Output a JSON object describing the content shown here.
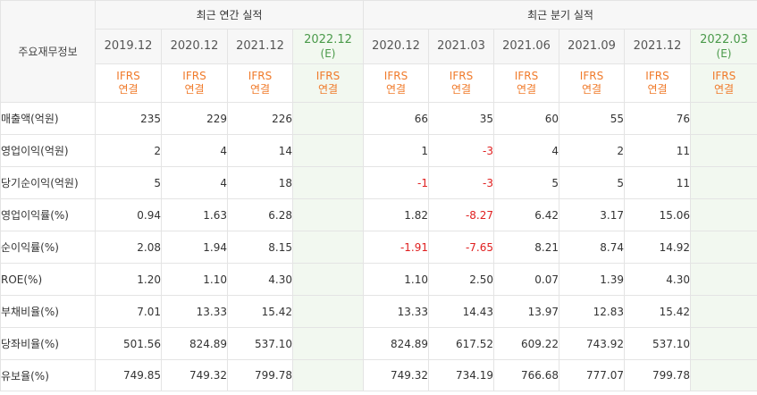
{
  "header": {
    "label": "주요재무정보",
    "annual_title": "최근 연간 실적",
    "quarter_title": "최근 분기 실적"
  },
  "periods": [
    {
      "label": "2019.12",
      "est": "",
      "ifrs": "IFRS",
      "basis": "연결",
      "estimate": false
    },
    {
      "label": "2020.12",
      "est": "",
      "ifrs": "IFRS",
      "basis": "연결",
      "estimate": false
    },
    {
      "label": "2021.12",
      "est": "",
      "ifrs": "IFRS",
      "basis": "연결",
      "estimate": false
    },
    {
      "label": "2022.12",
      "est": "(E)",
      "ifrs": "IFRS",
      "basis": "연결",
      "estimate": true
    },
    {
      "label": "2020.12",
      "est": "",
      "ifrs": "IFRS",
      "basis": "연결",
      "estimate": false
    },
    {
      "label": "2021.03",
      "est": "",
      "ifrs": "IFRS",
      "basis": "연결",
      "estimate": false
    },
    {
      "label": "2021.06",
      "est": "",
      "ifrs": "IFRS",
      "basis": "연결",
      "estimate": false
    },
    {
      "label": "2021.09",
      "est": "",
      "ifrs": "IFRS",
      "basis": "연결",
      "estimate": false
    },
    {
      "label": "2021.12",
      "est": "",
      "ifrs": "IFRS",
      "basis": "연결",
      "estimate": false
    },
    {
      "label": "2022.03",
      "est": "(E)",
      "ifrs": "IFRS",
      "basis": "연결",
      "estimate": true
    }
  ],
  "rows": [
    {
      "label": "매출액(억원)",
      "values": [
        "235",
        "229",
        "226",
        "",
        "66",
        "35",
        "60",
        "55",
        "76",
        ""
      ],
      "group_start": true
    },
    {
      "label": "영업이익(억원)",
      "values": [
        "2",
        "4",
        "14",
        "",
        "1",
        "-3",
        "4",
        "2",
        "11",
        ""
      ],
      "group_start": false
    },
    {
      "label": "당기순이익(억원)",
      "values": [
        "5",
        "4",
        "18",
        "",
        "-1",
        "-3",
        "5",
        "5",
        "11",
        ""
      ],
      "group_start": false
    },
    {
      "label": "영업이익률(%)",
      "values": [
        "0.94",
        "1.63",
        "6.28",
        "",
        "1.82",
        "-8.27",
        "6.42",
        "3.17",
        "15.06",
        ""
      ],
      "group_start": true
    },
    {
      "label": "순이익률(%)",
      "values": [
        "2.08",
        "1.94",
        "8.15",
        "",
        "-1.91",
        "-7.65",
        "8.21",
        "8.74",
        "14.92",
        ""
      ],
      "group_start": false
    },
    {
      "label": "ROE(%)",
      "values": [
        "1.20",
        "1.10",
        "4.30",
        "",
        "1.10",
        "2.50",
        "0.07",
        "1.39",
        "4.30",
        ""
      ],
      "group_start": false
    },
    {
      "label": "부채비율(%)",
      "values": [
        "7.01",
        "13.33",
        "15.42",
        "",
        "13.33",
        "14.43",
        "13.97",
        "12.83",
        "15.42",
        ""
      ],
      "group_start": true
    },
    {
      "label": "당좌비율(%)",
      "values": [
        "501.56",
        "824.89",
        "537.10",
        "",
        "824.89",
        "617.52",
        "609.22",
        "743.92",
        "537.10",
        ""
      ],
      "group_start": false
    },
    {
      "label": "유보율(%)",
      "values": [
        "749.85",
        "749.32",
        "799.78",
        "",
        "749.32",
        "734.19",
        "766.68",
        "777.07",
        "799.78",
        ""
      ],
      "group_start": false
    }
  ],
  "colors": {
    "ifrs": "#f07a2a",
    "estimate": "#4a9a4a",
    "negative": "#e02020"
  }
}
